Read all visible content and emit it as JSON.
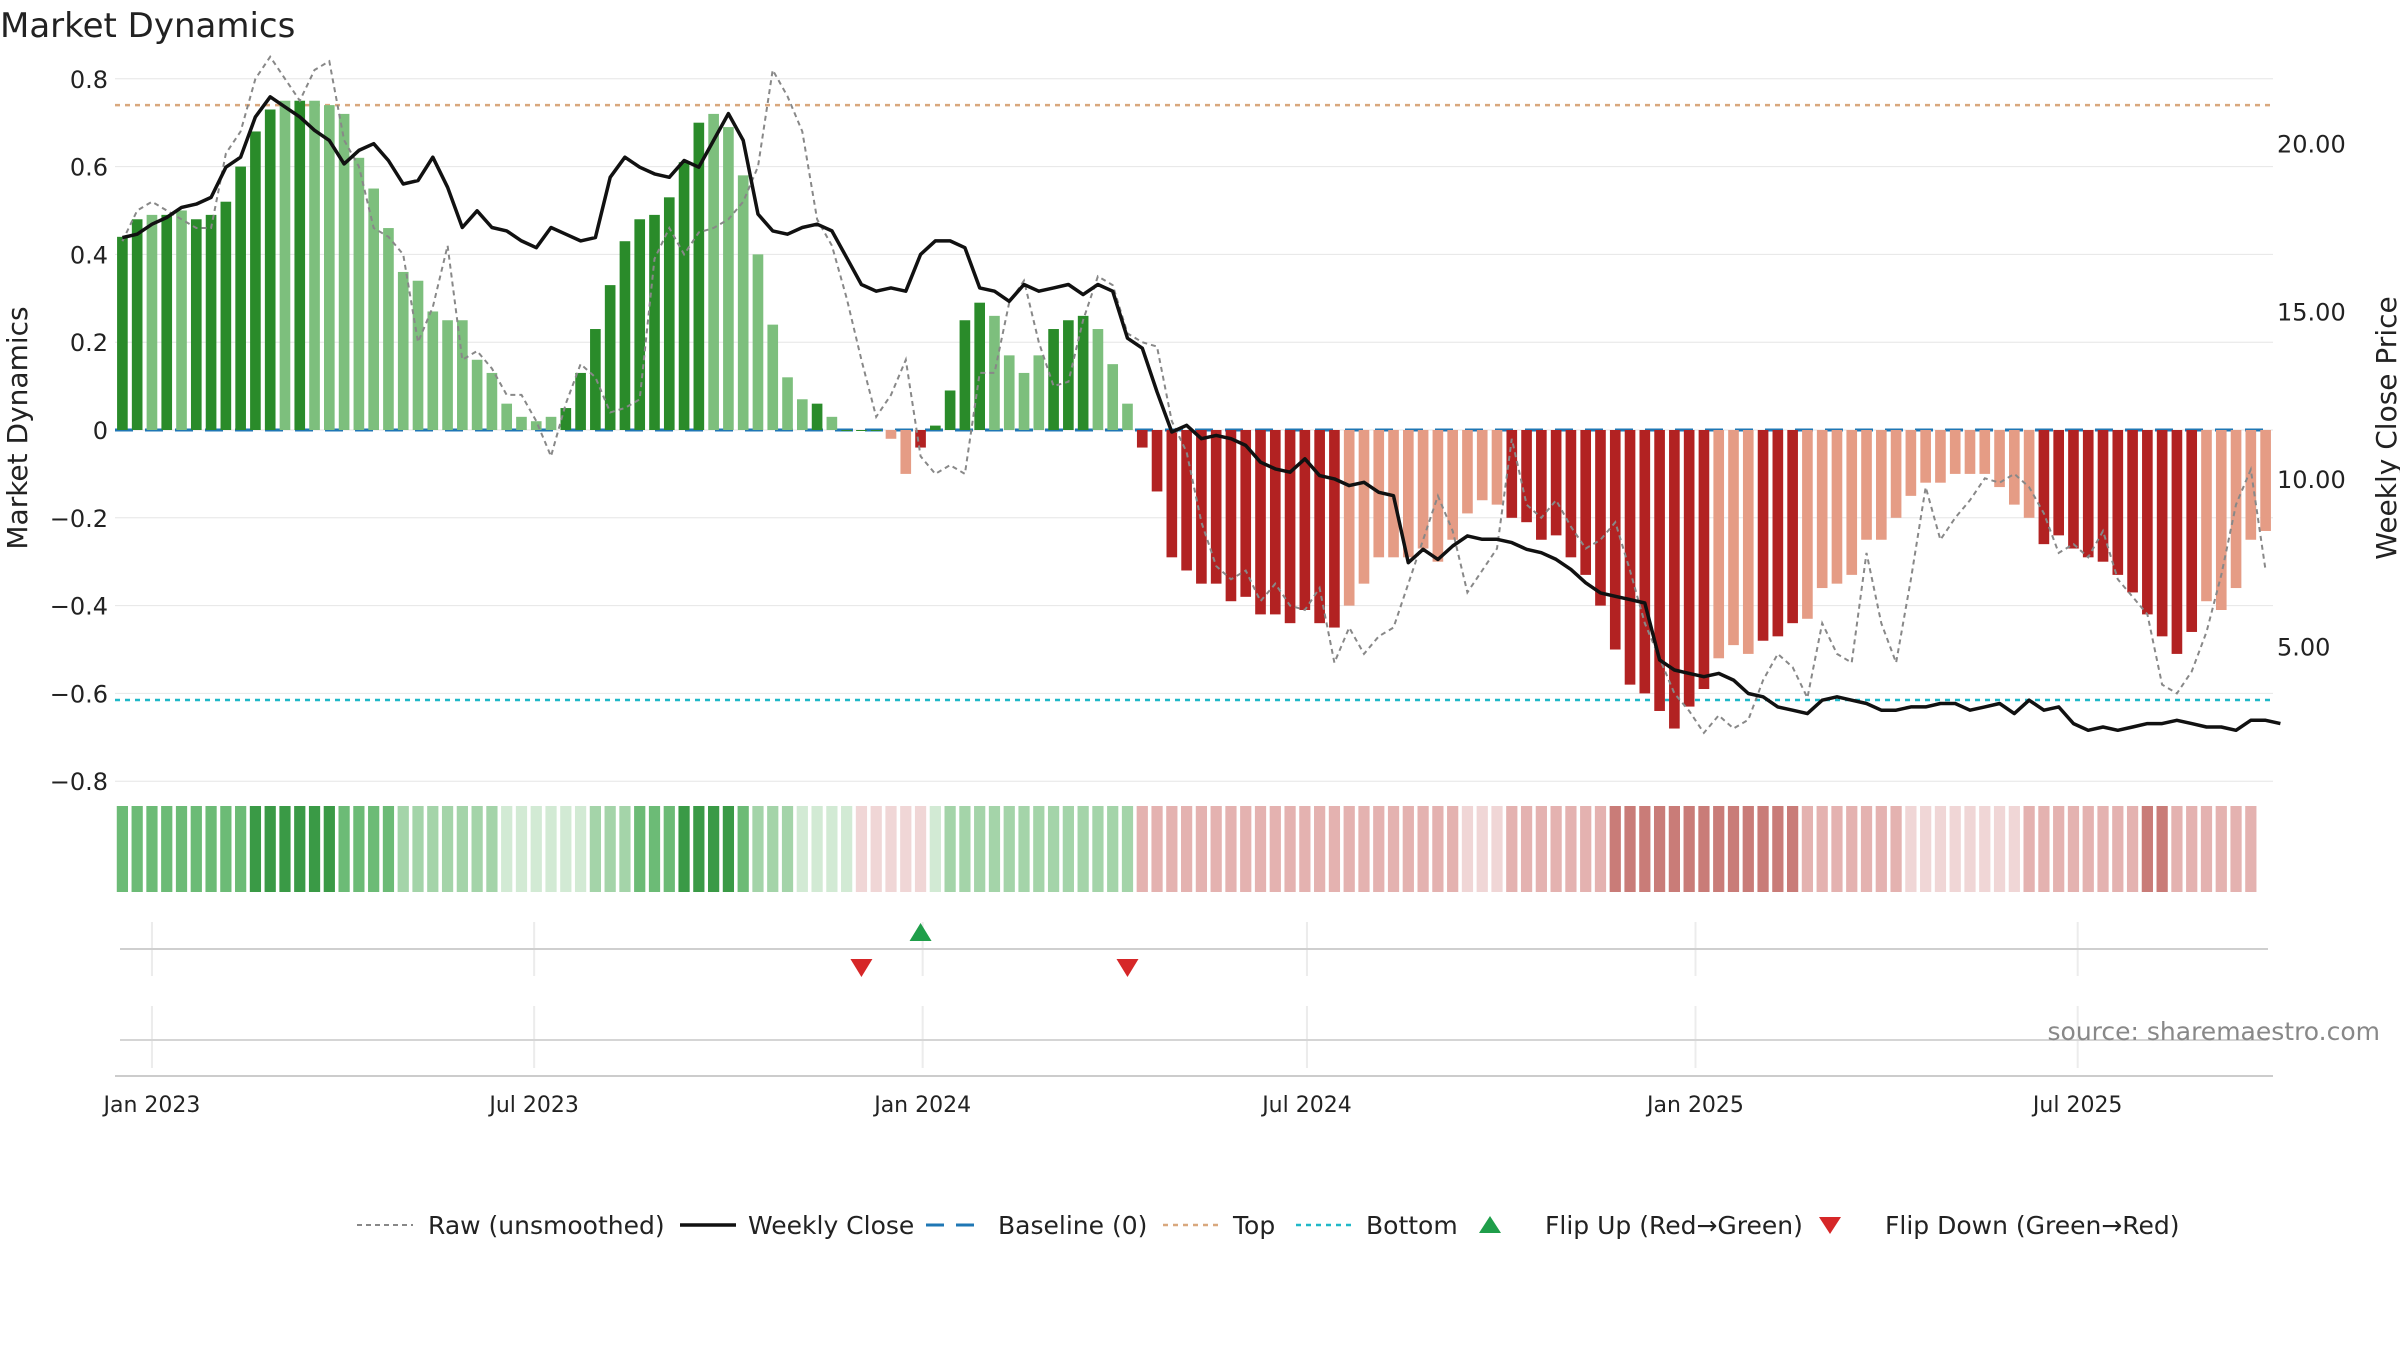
{
  "title": "Market Dynamics",
  "source": "source: sharemaestro.com",
  "chart_data": {
    "type": "bar",
    "title": "Market Dynamics",
    "ylabel_left": "Market Dynamics",
    "ylabel_right": "Weekly Close Price",
    "ylim_left": [
      -0.82,
      0.82
    ],
    "ylim_right": [
      0.72,
      22.2
    ],
    "left_ticks": [
      0.8,
      0.6,
      0.4,
      0.2,
      0,
      -0.2,
      -0.4,
      -0.6,
      -0.8
    ],
    "left_tick_labels": [
      "0.8",
      "0.6",
      "0.4",
      "0.2",
      "0",
      "−0.2",
      "−0.4",
      "−0.6",
      "−0.8"
    ],
    "right_ticks": [
      20,
      15,
      10,
      5
    ],
    "right_tick_labels": [
      "20.00",
      "15.00",
      "10.00",
      "5.00"
    ],
    "x_tick_labels": [
      "Jan 2023",
      "Jul 2023",
      "Jan 2024",
      "Jul 2024",
      "Jan 2025",
      "Jul 2025"
    ],
    "x_tick_dates": [
      "2023-01-01",
      "2023-07-01",
      "2024-01-01",
      "2024-07-01",
      "2025-01-01",
      "2025-07-01"
    ],
    "first_week": "2022-12-18",
    "top_level": 0.74,
    "bottom_level": -0.615,
    "bar_values": [
      0.44,
      0.48,
      0.49,
      0.49,
      0.5,
      0.48,
      0.49,
      0.52,
      0.6,
      0.68,
      0.73,
      0.75,
      0.75,
      0.75,
      0.74,
      0.72,
      0.62,
      0.55,
      0.46,
      0.36,
      0.34,
      0.27,
      0.25,
      0.25,
      0.16,
      0.13,
      0.06,
      0.03,
      0.02,
      0.03,
      0.05,
      0.13,
      0.23,
      0.33,
      0.43,
      0.48,
      0.49,
      0.53,
      0.61,
      0.7,
      0.72,
      0.69,
      0.58,
      0.4,
      0.24,
      0.12,
      0.07,
      0.06,
      0.03,
      0.0,
      0.0,
      0.0,
      -0.02,
      -0.1,
      -0.04,
      0.01,
      0.09,
      0.25,
      0.29,
      0.26,
      0.17,
      0.13,
      0.17,
      0.23,
      0.25,
      0.26,
      0.23,
      0.15,
      0.06,
      -0.04,
      -0.14,
      -0.29,
      -0.32,
      -0.35,
      -0.35,
      -0.39,
      -0.38,
      -0.42,
      -0.42,
      -0.44,
      -0.41,
      -0.44,
      -0.45,
      -0.4,
      -0.35,
      -0.29,
      -0.29,
      -0.29,
      -0.27,
      -0.3,
      -0.25,
      -0.19,
      -0.16,
      -0.17,
      -0.2,
      -0.21,
      -0.25,
      -0.24,
      -0.29,
      -0.33,
      -0.4,
      -0.5,
      -0.58,
      -0.6,
      -0.64,
      -0.68,
      -0.63,
      -0.59,
      -0.52,
      -0.49,
      -0.51,
      -0.48,
      -0.47,
      -0.44,
      -0.43,
      -0.36,
      -0.35,
      -0.33,
      -0.25,
      -0.25,
      -0.2,
      -0.15,
      -0.12,
      -0.12,
      -0.1,
      -0.1,
      -0.1,
      -0.13,
      -0.17,
      -0.2,
      -0.26,
      -0.24,
      -0.27,
      -0.29,
      -0.3,
      -0.33,
      -0.37,
      -0.42,
      -0.47,
      -0.51,
      -0.46,
      -0.39,
      -0.41,
      -0.36,
      -0.25,
      -0.23
    ],
    "bar_color_codes": [
      2,
      2,
      1,
      2,
      1,
      2,
      2,
      2,
      2,
      2,
      2,
      1,
      2,
      1,
      1,
      1,
      1,
      1,
      1,
      1,
      1,
      1,
      1,
      1,
      1,
      1,
      1,
      1,
      1,
      1,
      2,
      2,
      2,
      2,
      2,
      2,
      2,
      2,
      2,
      2,
      1,
      1,
      1,
      1,
      1,
      1,
      1,
      2,
      1,
      2,
      2,
      2,
      -1,
      -1,
      -2,
      2,
      2,
      2,
      2,
      1,
      1,
      1,
      1,
      2,
      2,
      2,
      1,
      1,
      1,
      -2,
      -2,
      -2,
      -2,
      -2,
      -2,
      -2,
      -2,
      -2,
      -2,
      -2,
      -2,
      -2,
      -2,
      -1,
      -1,
      -1,
      -1,
      -1,
      -1,
      -1,
      -1,
      -1,
      -1,
      -1,
      -2,
      -2,
      -2,
      -2,
      -2,
      -2,
      -2,
      -2,
      -2,
      -2,
      -2,
      -2,
      -2,
      -2,
      -1,
      -1,
      -1,
      -2,
      -2,
      -2,
      -1,
      -1,
      -1,
      -1,
      -1,
      -1,
      -1,
      -1,
      -1,
      -1,
      -1,
      -1,
      -1,
      -1,
      -1,
      -1,
      -2,
      -2,
      -2,
      -2,
      -2,
      -2,
      -2,
      -2,
      -2,
      -2,
      -2,
      -1,
      -1,
      -1,
      -1,
      -1,
      -2
    ],
    "strip_shades": [
      2,
      2,
      2,
      2,
      2,
      2,
      2,
      2,
      2,
      3,
      3,
      3,
      3,
      3,
      3,
      2,
      2,
      2,
      2,
      1,
      1,
      1,
      1,
      1,
      1,
      1,
      0,
      0,
      0,
      0,
      0,
      0,
      1,
      1,
      1,
      2,
      2,
      2,
      3,
      3,
      3,
      3,
      2,
      1,
      1,
      1,
      0,
      0,
      0,
      0,
      0,
      0,
      0,
      0,
      0,
      0,
      1,
      1,
      1,
      1,
      1,
      1,
      1,
      1,
      1,
      1,
      1,
      1,
      1,
      -1,
      -1,
      -1,
      -1,
      -1,
      -1,
      -1,
      -1,
      -1,
      -1,
      -1,
      -1,
      -1,
      -1,
      -1,
      -1,
      -1,
      -1,
      -1,
      -1,
      -1,
      -1,
      0,
      0,
      0,
      -1,
      -1,
      -1,
      -1,
      -1,
      -1,
      -1,
      -2,
      -2,
      -2,
      -2,
      -2,
      -2,
      -2,
      -2,
      -2,
      -2,
      -2,
      -2,
      -2,
      -1,
      -1,
      -1,
      -1,
      -1,
      -1,
      -1,
      0,
      0,
      0,
      0,
      0,
      0,
      0,
      0,
      -1,
      -1,
      -1,
      -1,
      -1,
      -1,
      -1,
      -1,
      -2,
      -2,
      -1,
      -1,
      -1,
      -1,
      -1,
      -1
    ],
    "raw_values": [
      0.43,
      0.5,
      0.52,
      0.5,
      0.48,
      0.46,
      0.46,
      0.63,
      0.68,
      0.8,
      0.85,
      0.8,
      0.75,
      0.82,
      0.84,
      0.66,
      0.6,
      0.46,
      0.44,
      0.4,
      0.2,
      0.28,
      0.42,
      0.16,
      0.18,
      0.14,
      0.08,
      0.08,
      0.02,
      -0.06,
      0.06,
      0.15,
      0.12,
      0.04,
      0.05,
      0.07,
      0.39,
      0.46,
      0.4,
      0.45,
      0.46,
      0.48,
      0.52,
      0.6,
      0.82,
      0.76,
      0.68,
      0.48,
      0.42,
      0.3,
      0.16,
      0.03,
      0.08,
      0.16,
      -0.06,
      -0.1,
      -0.08,
      -0.1,
      0.13,
      0.13,
      0.29,
      0.34,
      0.2,
      0.1,
      0.11,
      0.25,
      0.35,
      0.33,
      0.22,
      0.2,
      0.19,
      0.02,
      -0.05,
      -0.21,
      -0.31,
      -0.34,
      -0.32,
      -0.39,
      -0.35,
      -0.4,
      -0.41,
      -0.36,
      -0.53,
      -0.45,
      -0.51,
      -0.47,
      -0.45,
      -0.35,
      -0.25,
      -0.15,
      -0.23,
      -0.37,
      -0.32,
      -0.27,
      -0.02,
      -0.17,
      -0.2,
      -0.16,
      -0.22,
      -0.27,
      -0.25,
      -0.21,
      -0.32,
      -0.44,
      -0.52,
      -0.6,
      -0.64,
      -0.69,
      -0.65,
      -0.68,
      -0.66,
      -0.57,
      -0.51,
      -0.54,
      -0.61,
      -0.44,
      -0.51,
      -0.53,
      -0.28,
      -0.44,
      -0.53,
      -0.34,
      -0.13,
      -0.25,
      -0.2,
      -0.16,
      -0.11,
      -0.12,
      -0.1,
      -0.13,
      -0.19,
      -0.28,
      -0.26,
      -0.29,
      -0.23,
      -0.34,
      -0.38,
      -0.42,
      -0.58,
      -0.6,
      -0.55,
      -0.46,
      -0.33,
      -0.17,
      -0.09,
      -0.32
    ],
    "close_values": [
      17.2,
      17.3,
      17.6,
      17.8,
      18.1,
      18.2,
      18.4,
      19.3,
      19.6,
      20.8,
      21.4,
      21.1,
      20.8,
      20.4,
      20.1,
      19.4,
      19.8,
      20.0,
      19.5,
      18.8,
      18.9,
      19.6,
      18.7,
      17.5,
      18.0,
      17.5,
      17.4,
      17.1,
      16.9,
      17.5,
      17.3,
      17.1,
      17.2,
      19.0,
      19.6,
      19.3,
      19.1,
      19.0,
      19.5,
      19.3,
      20.1,
      20.9,
      20.1,
      17.9,
      17.4,
      17.3,
      17.5,
      17.6,
      17.4,
      16.6,
      15.8,
      15.6,
      15.7,
      15.6,
      16.7,
      17.1,
      17.1,
      16.9,
      15.7,
      15.6,
      15.3,
      15.8,
      15.6,
      15.7,
      15.8,
      15.5,
      15.8,
      15.6,
      14.2,
      13.9,
      12.6,
      11.4,
      11.6,
      11.2,
      11.3,
      11.2,
      11.0,
      10.5,
      10.3,
      10.2,
      10.6,
      10.1,
      10.0,
      9.8,
      9.9,
      9.6,
      9.5,
      7.5,
      7.9,
      7.6,
      8.0,
      8.3,
      8.2,
      8.2,
      8.1,
      7.9,
      7.8,
      7.6,
      7.3,
      6.9,
      6.6,
      6.5,
      6.4,
      6.3,
      4.6,
      4.3,
      4.2,
      4.1,
      4.2,
      4.0,
      3.6,
      3.5,
      3.2,
      3.1,
      3.0,
      3.4,
      3.5,
      3.4,
      3.3,
      3.1,
      3.1,
      3.2,
      3.2,
      3.3,
      3.3,
      3.1,
      3.2,
      3.3,
      3.0,
      3.4,
      3.1,
      3.2,
      2.7,
      2.5,
      2.6,
      2.5,
      2.6,
      2.7,
      2.7,
      2.8,
      2.7,
      2.6,
      2.6,
      2.5,
      2.8,
      2.8,
      2.7
    ],
    "flip_up_weeks": [
      54
    ],
    "flip_down_weeks": [
      50,
      68
    ],
    "legend": [
      "Raw (unsmoothed)",
      "Weekly Close",
      "Baseline (0)",
      "Top",
      "Bottom",
      "Flip Up (Red→Green)",
      "Flip Down (Green→Red)"
    ],
    "colors": {
      "strong_green": "#2a8b2a",
      "light_green": "#7dbf7d",
      "strong_red": "#b22222",
      "light_red": "#e59c85",
      "top_line": "#d9a87e",
      "bottom_line": "#1fb8c8",
      "baseline": "#1f77b4",
      "raw": "#888888",
      "close": "#111111",
      "flip_up": "#1f9e4a",
      "flip_down": "#d62728",
      "grid": "#e6e6e6"
    }
  }
}
